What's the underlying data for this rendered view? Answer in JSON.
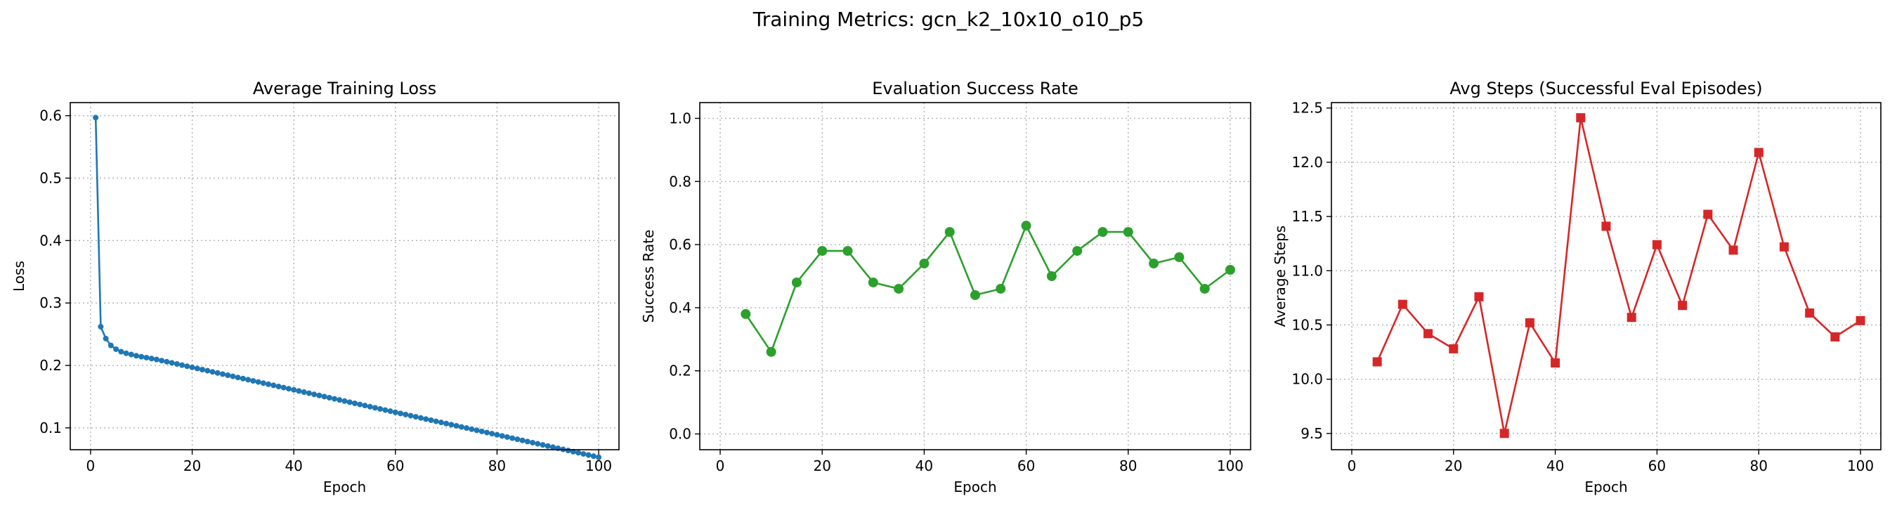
{
  "figure": {
    "title": "Training Metrics: gcn_k2_10x10_o10_p5"
  },
  "chart_data": [
    {
      "type": "line",
      "title": "Average Training Loss",
      "xlabel": "Epoch",
      "ylabel": "Loss",
      "xlim": [
        -4,
        104
      ],
      "ylim": [
        0.065,
        0.621
      ],
      "xticks": [
        0,
        20,
        40,
        60,
        80,
        100
      ],
      "yticks": [
        0.1,
        0.2,
        0.3,
        0.4,
        0.5,
        0.6
      ],
      "ytick_labels": [
        "0.1",
        "0.2",
        "0.3",
        "0.4",
        "0.5",
        "0.6"
      ],
      "grid": true,
      "marker": "circle",
      "color": "#1f77b4",
      "x": [
        1,
        2,
        3,
        4,
        5,
        6,
        7,
        8,
        9,
        10,
        11,
        12,
        13,
        14,
        15,
        16,
        17,
        18,
        19,
        20,
        21,
        22,
        23,
        24,
        25,
        26,
        27,
        28,
        29,
        30,
        31,
        32,
        33,
        34,
        35,
        36,
        37,
        38,
        39,
        40,
        41,
        42,
        43,
        44,
        45,
        46,
        47,
        48,
        49,
        50,
        51,
        52,
        53,
        54,
        55,
        56,
        57,
        58,
        59,
        60,
        61,
        62,
        63,
        64,
        65,
        66,
        67,
        68,
        69,
        70,
        71,
        72,
        73,
        74,
        75,
        76,
        77,
        78,
        79,
        80,
        81,
        82,
        83,
        84,
        85,
        86,
        87,
        88,
        89,
        90,
        91,
        92,
        93,
        94,
        95,
        96,
        97,
        98,
        99,
        100
      ],
      "y": [
        0.597,
        0.262,
        0.243,
        0.232,
        0.226,
        0.222,
        0.2195,
        0.2175,
        0.2155,
        0.214,
        0.2125,
        0.211,
        0.2095,
        0.2077,
        0.2059,
        0.2041,
        0.2023,
        0.2005,
        0.1987,
        0.1969,
        0.1951,
        0.1933,
        0.1915,
        0.1897,
        0.1879,
        0.1861,
        0.1843,
        0.1825,
        0.1807,
        0.1789,
        0.1771,
        0.1753,
        0.1735,
        0.1717,
        0.1699,
        0.1681,
        0.1663,
        0.1645,
        0.1627,
        0.1609,
        0.1591,
        0.1573,
        0.1555,
        0.1537,
        0.1519,
        0.1501,
        0.1483,
        0.1465,
        0.1447,
        0.1429,
        0.1411,
        0.1393,
        0.1375,
        0.1357,
        0.1339,
        0.1321,
        0.1303,
        0.1285,
        0.1267,
        0.1249,
        0.1231,
        0.1213,
        0.1195,
        0.1177,
        0.1159,
        0.1141,
        0.1123,
        0.1105,
        0.1087,
        0.1069,
        0.1051,
        0.1033,
        0.1015,
        0.0997,
        0.0979,
        0.0961,
        0.0943,
        0.0925,
        0.0907,
        0.0889,
        0.0871,
        0.0853,
        0.0835,
        0.0817,
        0.0799,
        0.0781,
        0.0763,
        0.0745,
        0.0727,
        0.0709,
        0.0691,
        0.0673,
        0.0655,
        0.0637,
        0.0619,
        0.0601,
        0.0583,
        0.0565,
        0.0547,
        0.0529
      ]
    },
    {
      "type": "line",
      "title": "Evaluation Success Rate",
      "xlabel": "Epoch",
      "ylabel": "Success Rate",
      "xlim": [
        -4,
        104
      ],
      "ylim": [
        -0.05,
        1.05
      ],
      "xticks": [
        0,
        20,
        40,
        60,
        80,
        100
      ],
      "yticks": [
        0.0,
        0.2,
        0.4,
        0.6,
        0.8,
        1.0
      ],
      "ytick_labels": [
        "0.0",
        "0.2",
        "0.4",
        "0.6",
        "0.8",
        "1.0"
      ],
      "grid": true,
      "marker": "circle",
      "color": "#2ca02c",
      "x": [
        5,
        10,
        15,
        20,
        25,
        30,
        35,
        40,
        45,
        50,
        55,
        60,
        65,
        70,
        75,
        80,
        85,
        90,
        95,
        100
      ],
      "y": [
        0.38,
        0.26,
        0.48,
        0.58,
        0.58,
        0.48,
        0.46,
        0.54,
        0.64,
        0.44,
        0.46,
        0.66,
        0.5,
        0.58,
        0.64,
        0.64,
        0.54,
        0.56,
        0.46,
        0.52
      ]
    },
    {
      "type": "line",
      "title": "Avg Steps (Successful Eval Episodes)",
      "xlabel": "Epoch",
      "ylabel": "Average Steps",
      "xlim": [
        -4,
        104
      ],
      "ylim": [
        9.35,
        12.55
      ],
      "xticks": [
        0,
        20,
        40,
        60,
        80,
        100
      ],
      "yticks": [
        9.5,
        10.0,
        10.5,
        11.0,
        11.5,
        12.0,
        12.5
      ],
      "ytick_labels": [
        "9.5",
        "10.0",
        "10.5",
        "11.0",
        "11.5",
        "12.0",
        "12.5"
      ],
      "grid": true,
      "marker": "square",
      "color": "#d62728",
      "x": [
        5,
        10,
        15,
        20,
        25,
        30,
        35,
        40,
        45,
        50,
        55,
        60,
        65,
        70,
        75,
        80,
        85,
        90,
        95,
        100
      ],
      "y": [
        10.16,
        10.69,
        10.42,
        10.28,
        10.76,
        9.5,
        10.52,
        10.15,
        12.41,
        11.41,
        10.57,
        11.24,
        10.68,
        11.52,
        11.19,
        12.09,
        11.22,
        10.61,
        10.39,
        10.54
      ]
    }
  ]
}
